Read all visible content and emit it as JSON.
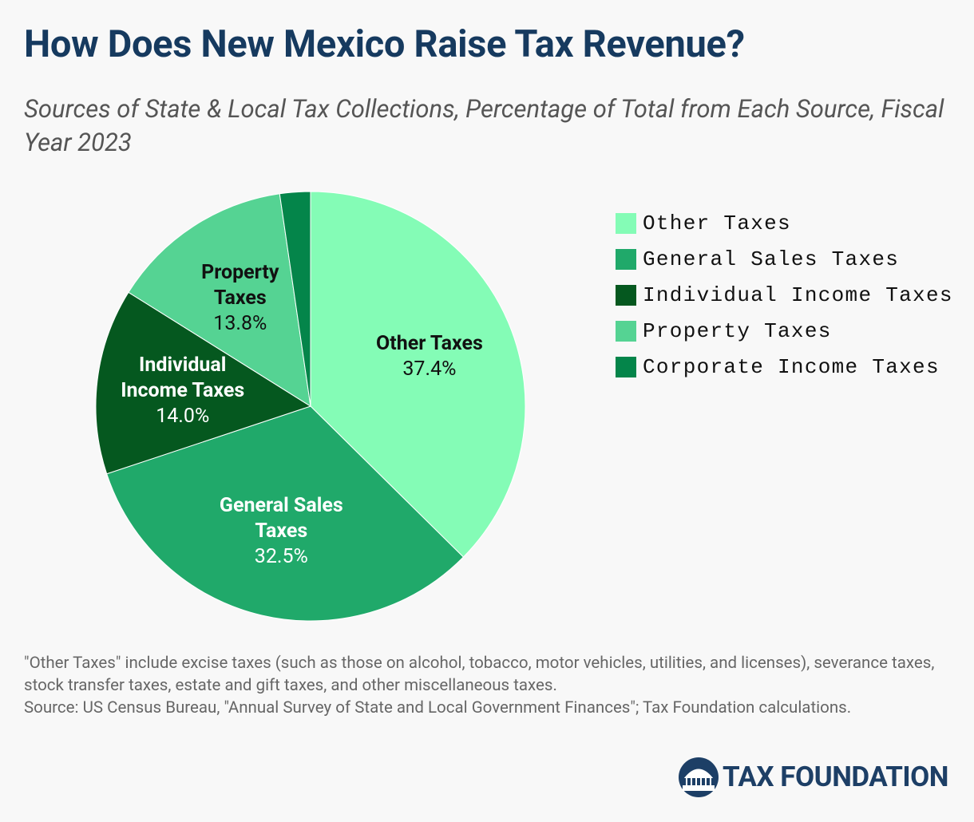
{
  "chart_data": {
    "type": "pie",
    "title": "How Does New Mexico Raise Tax Revenue?",
    "subtitle": "Sources of State & Local Tax Collections, Percentage of Total from Each Source, Fiscal Year 2023",
    "categories": [
      "Other Taxes",
      "General Sales Taxes",
      "Individual Income Taxes",
      "Property Taxes",
      "Corporate Income Taxes"
    ],
    "values": [
      37.4,
      32.5,
      14.0,
      13.8,
      2.3
    ],
    "value_labels": [
      "37.4%",
      "32.5%",
      "14.0%",
      "13.8%",
      null
    ],
    "colors": [
      "#84fcb6",
      "#20a96a",
      "#05581f",
      "#55d393",
      "#04854a"
    ],
    "label_colors": [
      "#111111",
      "#ffffff",
      "#ffffff",
      "#111111",
      "#ffffff"
    ],
    "note": "\"Other Taxes\" include excise taxes (such as those on alcohol, tobacco, motor vehicles, utilities, and licenses), severance taxes, stock transfer taxes, estate and gift taxes, and other miscellaneous taxes.",
    "source": "Source: US Census Bureau, \"Annual Survey of State and Local Government Finances\"; Tax Foundation calculations.",
    "logo": "TAX FOUNDATION"
  }
}
